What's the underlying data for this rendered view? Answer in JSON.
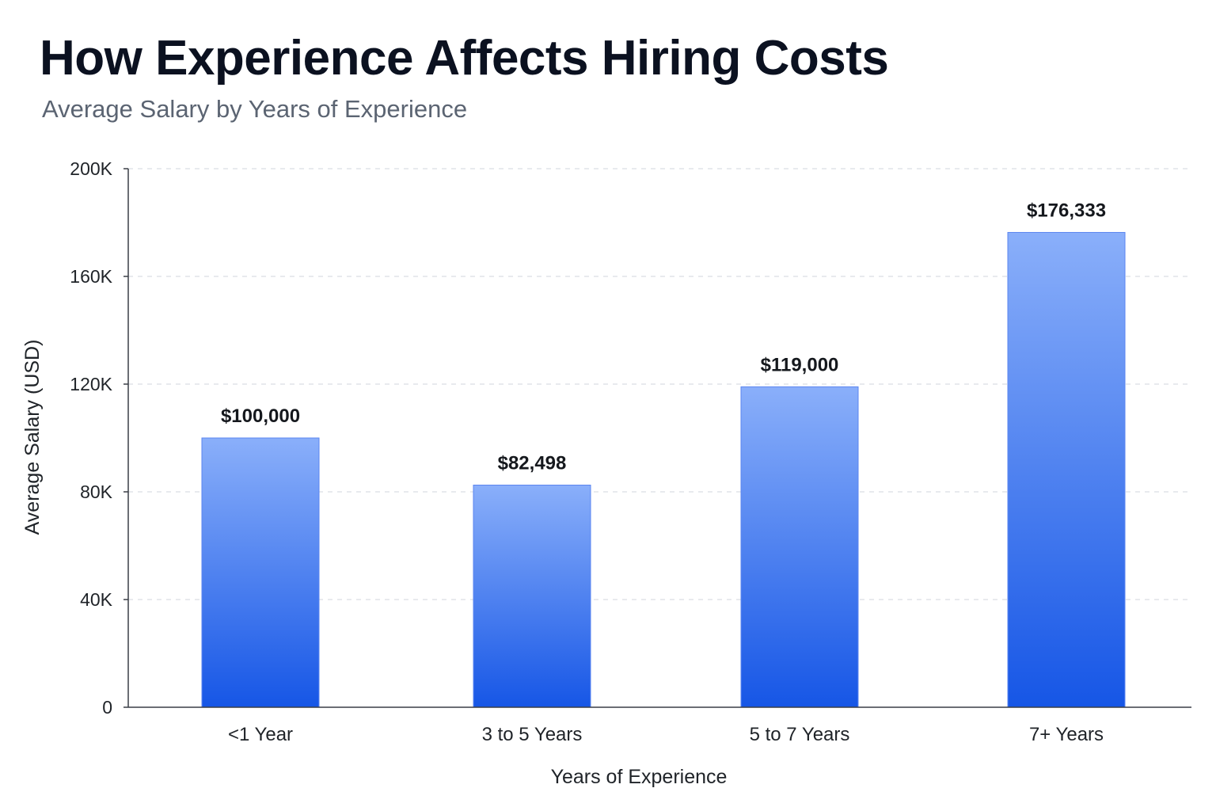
{
  "chart_data": {
    "type": "bar",
    "title": "How Experience Affects Hiring Costs",
    "subtitle": "Average Salary by Years of Experience",
    "xlabel": "Years of Experience",
    "ylabel": "Average Salary (USD)",
    "categories": [
      "<1 Year",
      "3 to 5 Years",
      "5 to 7 Years",
      "7+ Years"
    ],
    "values": [
      100000,
      82498,
      119000,
      176333
    ],
    "value_labels": [
      "$100,000",
      "$82,498",
      "$119,000",
      "$176,333"
    ],
    "ylim": [
      0,
      200000
    ],
    "yticks": [
      0,
      40000,
      80000,
      120000,
      160000,
      200000
    ],
    "ytick_labels": [
      "0",
      "40K",
      "80K",
      "120K",
      "160K",
      "200K"
    ],
    "grid": true,
    "bar_color_top": "#8aaffa",
    "bar_color_bottom": "#1656e6"
  }
}
